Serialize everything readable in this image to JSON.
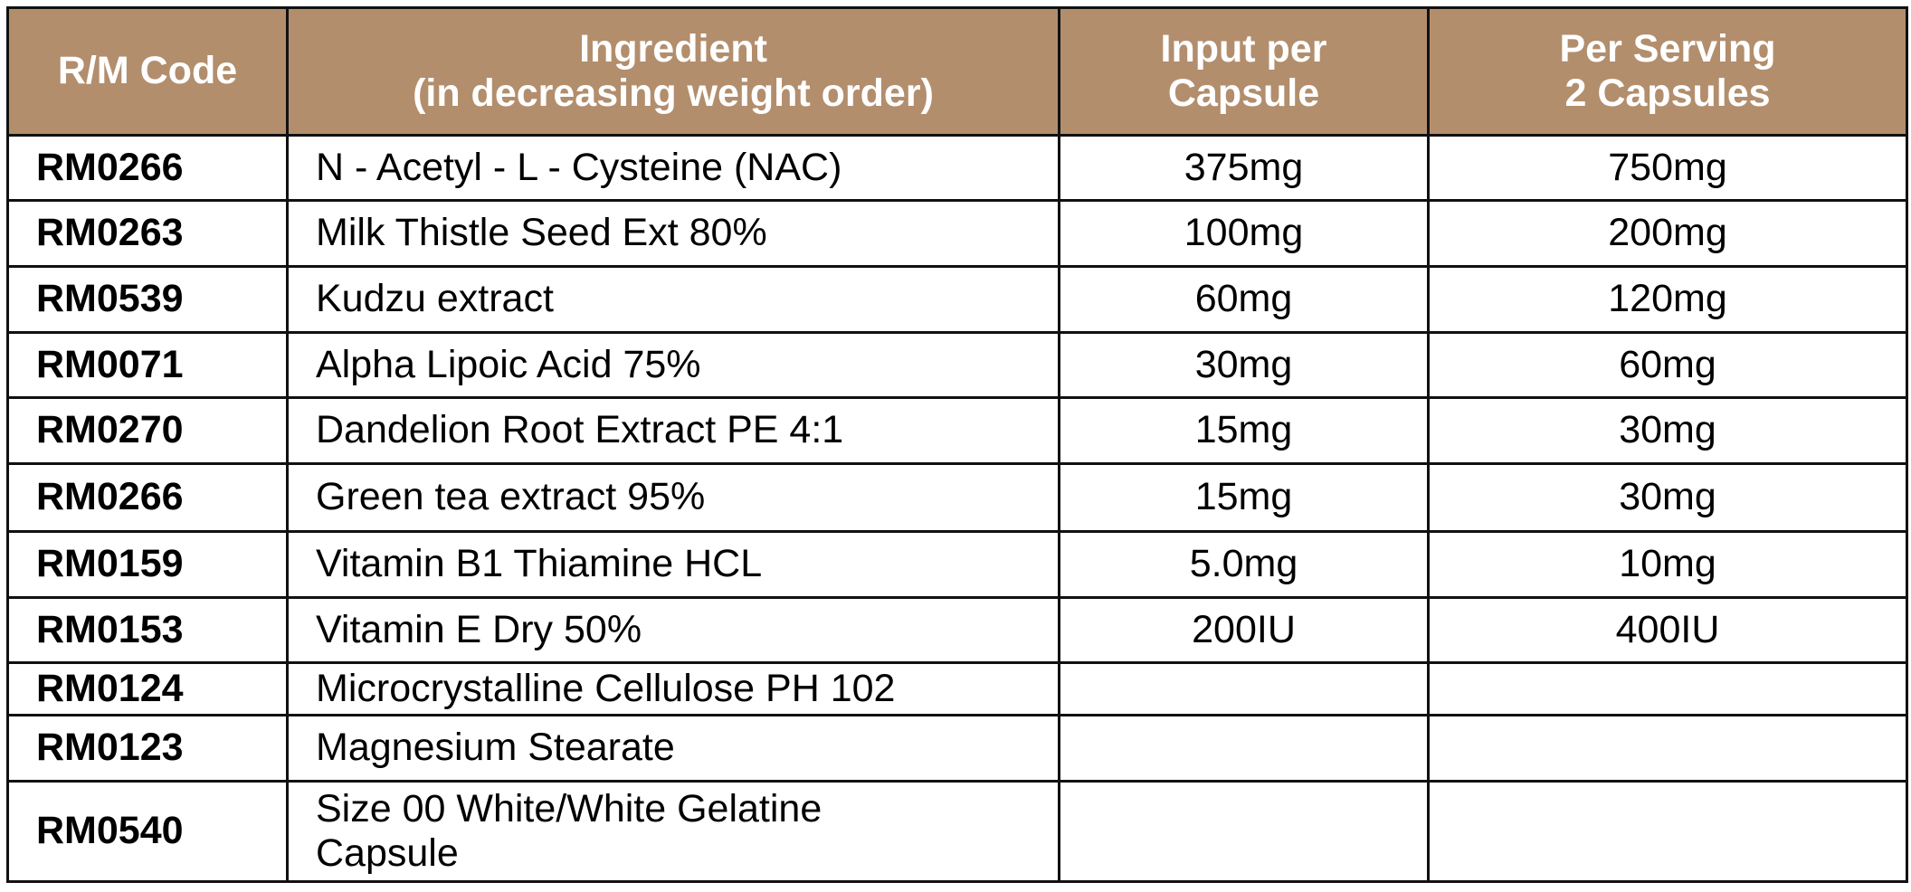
{
  "table": {
    "header": [
      "R/M Code",
      "Ingredient\n(in decreasing weight order)",
      "Input per\nCapsule",
      "Per Serving\n2 Capsules"
    ],
    "rows": [
      [
        "RM0266",
        "N - Acetyl - L - Cysteine (NAC)",
        "375mg",
        "750mg"
      ],
      [
        "RM0263",
        "Milk Thistle Seed Ext 80%",
        "100mg",
        "200mg"
      ],
      [
        "RM0539",
        "Kudzu extract",
        "60mg",
        "120mg"
      ],
      [
        "RM0071",
        "Alpha Lipoic Acid 75%",
        "30mg",
        "60mg"
      ],
      [
        "RM0270",
        "Dandelion Root Extract PE 4:1",
        "15mg",
        "30mg"
      ],
      [
        "RM0266",
        "Green tea extract 95%",
        "15mg",
        "30mg"
      ],
      [
        "RM0159",
        "Vitamin B1 Thiamine HCL",
        "5.0mg",
        "10mg"
      ],
      [
        "RM0153",
        "Vitamin E Dry 50%",
        "200IU",
        "400IU"
      ],
      [
        "RM0124",
        "Microcrystalline Cellulose PH 102"
      ],
      [
        "RM0123",
        "Magnesium Stearate"
      ],
      [
        "RM0540",
        "Size 00 White/White Gelatine\nCapsule"
      ]
    ]
  }
}
